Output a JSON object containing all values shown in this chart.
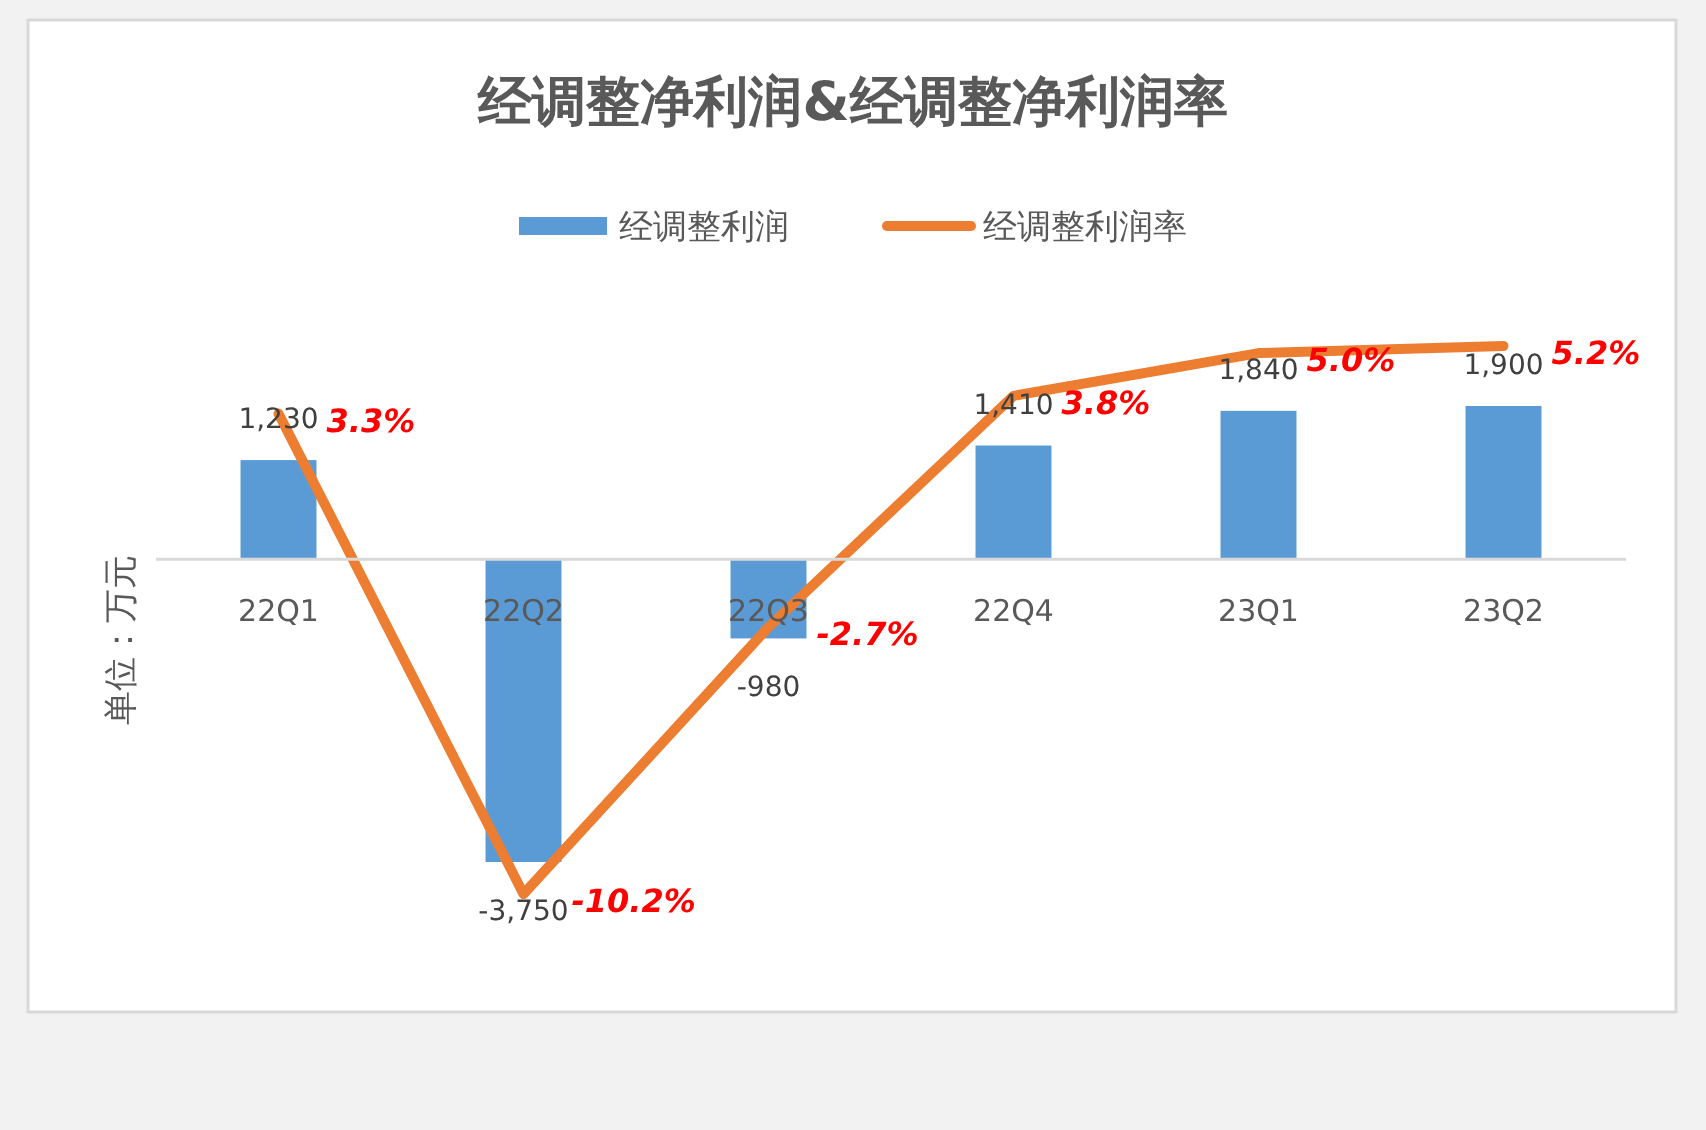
{
  "chart_data": {
    "type": "bar",
    "title": "经调整净利润&经调整净利润率",
    "ylabel": "单位：万元",
    "categories": [
      "22Q1",
      "22Q2",
      "22Q3",
      "22Q4",
      "23Q1",
      "23Q2"
    ],
    "series": [
      {
        "name": "经调整利润",
        "color": "#5b9bd5",
        "values": [
          1230,
          -3750,
          -980,
          1410,
          1840,
          1900
        ],
        "value_labels": [
          "1,230",
          "-3,750",
          "-980",
          "1,410",
          "1,840",
          "1,900"
        ]
      },
      {
        "name": "经调整利润率",
        "type": "line",
        "axis": "y2",
        "color": "#ed7d31",
        "values": [
          3.3,
          -10.2,
          -2.7,
          3.8,
          5.0,
          5.2
        ],
        "value_labels": [
          "3.3%",
          "-10.2%",
          "-2.7%",
          "3.8%",
          "5.0%",
          "5.2%"
        ]
      }
    ],
    "tick_labels": "x",
    "legend": "top"
  }
}
